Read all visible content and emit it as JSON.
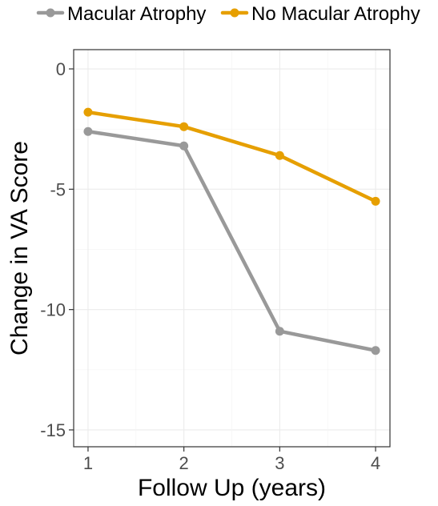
{
  "chart_data": {
    "type": "line",
    "x": [
      1,
      2,
      3,
      4
    ],
    "series": [
      {
        "name": "Macular Atrophy",
        "values": [
          -2.6,
          -3.2,
          -10.9,
          -11.7
        ],
        "color": "#999999"
      },
      {
        "name": "No Macular Atrophy",
        "values": [
          -1.8,
          -2.4,
          -3.6,
          -5.5
        ],
        "color": "#E69F00"
      }
    ],
    "xlabel": "Follow Up (years)",
    "ylabel": "Change in VA Score",
    "xticks": [
      "1",
      "2",
      "3",
      "4"
    ],
    "yticks": [
      "0",
      "-5",
      "-10",
      "-15"
    ],
    "xlim": [
      0.85,
      4.15
    ],
    "ylim": [
      -15.7,
      0.8
    ],
    "grid": true,
    "legend_position": "top"
  }
}
